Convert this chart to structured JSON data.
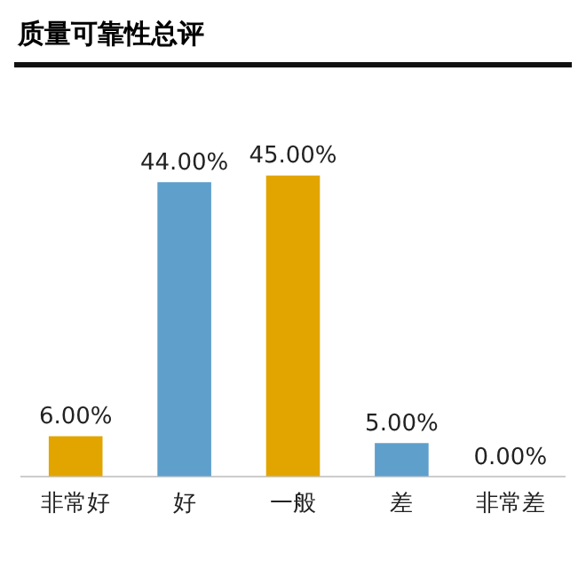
{
  "chart_data": {
    "type": "bar",
    "title": "质量可靠性总评",
    "categories": [
      "非常好",
      "好",
      "一般",
      "差",
      "非常差"
    ],
    "values": [
      6,
      44,
      45,
      5,
      0
    ],
    "colors": [
      "#e2a500",
      "#5e9fcc",
      "#e2a500",
      "#5e9fcc",
      "#5e9fcc"
    ],
    "value_labels": [
      "6.00%",
      "44.00%",
      "45.00%",
      "5.00%",
      "0.00%"
    ],
    "grid": false,
    "legend": false
  }
}
